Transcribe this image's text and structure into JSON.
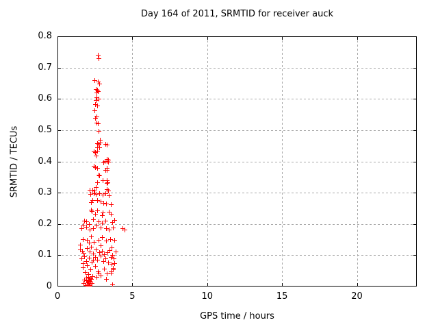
{
  "chart_data": {
    "type": "scatter",
    "title": "Day 164 of 2011, SRMTID for receiver auck",
    "xlabel": "GPS time / hours",
    "ylabel": "SRMTID / TECUs",
    "xlim": [
      0,
      24
    ],
    "ylim": [
      0,
      0.8
    ],
    "xticks": [
      {
        "v": 0,
        "label": "0"
      },
      {
        "v": 5,
        "label": "5"
      },
      {
        "v": 10,
        "label": "10"
      },
      {
        "v": 15,
        "label": "15"
      },
      {
        "v": 20,
        "label": "20"
      }
    ],
    "yticks": [
      {
        "v": 0.0,
        "label": "0"
      },
      {
        "v": 0.1,
        "label": "0.1"
      },
      {
        "v": 0.2,
        "label": "0.2"
      },
      {
        "v": 0.3,
        "label": "0.3"
      },
      {
        "v": 0.4,
        "label": "0.4"
      },
      {
        "v": 0.5,
        "label": "0.5"
      },
      {
        "v": 0.6,
        "label": "0.6"
      },
      {
        "v": 0.7,
        "label": "0.7"
      },
      {
        "v": 0.8,
        "label": "0.8"
      }
    ],
    "grid": true,
    "legend": "none",
    "marker": "plus",
    "marker_color": "#ff0000",
    "grid_color": "#a8a8a8",
    "border_color": "#000000",
    "series": [
      {
        "name": "SRMTID",
        "points": [
          [
            2.7,
            0.74
          ],
          [
            2.72,
            0.73
          ],
          [
            2.48,
            0.66
          ],
          [
            2.68,
            0.656
          ],
          [
            2.79,
            0.648
          ],
          [
            2.56,
            0.632
          ],
          [
            2.63,
            0.63
          ],
          [
            2.68,
            0.625
          ],
          [
            2.61,
            0.62
          ],
          [
            2.6,
            0.605
          ],
          [
            2.74,
            0.6
          ],
          [
            2.56,
            0.596
          ],
          [
            2.53,
            0.583
          ],
          [
            2.66,
            0.579
          ],
          [
            2.49,
            0.563
          ],
          [
            2.6,
            0.543
          ],
          [
            2.5,
            0.539
          ],
          [
            2.59,
            0.524
          ],
          [
            2.71,
            0.522
          ],
          [
            2.74,
            0.497
          ],
          [
            2.82,
            0.469
          ],
          [
            2.63,
            0.458
          ],
          [
            2.75,
            0.456
          ],
          [
            2.82,
            0.46
          ],
          [
            3.21,
            0.456
          ],
          [
            3.29,
            0.453
          ],
          [
            2.66,
            0.446
          ],
          [
            2.79,
            0.445
          ],
          [
            2.41,
            0.432
          ],
          [
            2.52,
            0.429
          ],
          [
            2.63,
            0.433
          ],
          [
            2.56,
            0.418
          ],
          [
            3.27,
            0.408
          ],
          [
            3.37,
            0.406
          ],
          [
            3.14,
            0.401
          ],
          [
            3.27,
            0.401
          ],
          [
            3.37,
            0.398
          ],
          [
            3.06,
            0.396
          ],
          [
            2.53,
            0.381
          ],
          [
            2.66,
            0.38
          ],
          [
            3.29,
            0.38
          ],
          [
            3.27,
            0.373
          ],
          [
            2.42,
            0.385
          ],
          [
            3.18,
            0.373
          ],
          [
            2.79,
            0.354
          ],
          [
            2.72,
            0.357
          ],
          [
            3.27,
            0.339
          ],
          [
            2.63,
            0.334
          ],
          [
            3.36,
            0.334
          ],
          [
            3.27,
            0.33
          ],
          [
            3.03,
            0.339
          ],
          [
            3.37,
            0.307
          ],
          [
            3.27,
            0.311
          ],
          [
            2.54,
            0.317
          ],
          [
            2.15,
            0.308
          ],
          [
            2.33,
            0.31
          ],
          [
            2.45,
            0.306
          ],
          [
            2.19,
            0.296
          ],
          [
            2.42,
            0.299
          ],
          [
            2.57,
            0.295
          ],
          [
            2.8,
            0.297
          ],
          [
            3.0,
            0.293
          ],
          [
            3.18,
            0.297
          ],
          [
            3.41,
            0.292
          ],
          [
            2.26,
            0.27
          ],
          [
            2.65,
            0.276
          ],
          [
            2.88,
            0.272
          ],
          [
            3.06,
            0.268
          ],
          [
            3.23,
            0.266
          ],
          [
            3.56,
            0.264
          ],
          [
            2.34,
            0.277
          ],
          [
            2.23,
            0.246
          ],
          [
            2.29,
            0.241
          ],
          [
            2.65,
            0.243
          ],
          [
            3.03,
            0.236
          ],
          [
            3.45,
            0.24
          ],
          [
            3.56,
            0.233
          ],
          [
            2.5,
            0.232
          ],
          [
            2.95,
            0.228
          ],
          [
            1.78,
            0.211
          ],
          [
            1.93,
            0.208
          ],
          [
            2.39,
            0.214
          ],
          [
            2.72,
            0.208
          ],
          [
            2.98,
            0.204
          ],
          [
            3.18,
            0.211
          ],
          [
            3.64,
            0.206
          ],
          [
            3.79,
            0.213
          ],
          [
            1.69,
            0.197
          ],
          [
            2.1,
            0.2
          ],
          [
            1.6,
            0.186
          ],
          [
            1.92,
            0.19
          ],
          [
            2.17,
            0.182
          ],
          [
            2.39,
            0.186
          ],
          [
            2.62,
            0.194
          ],
          [
            2.9,
            0.189
          ],
          [
            3.23,
            0.187
          ],
          [
            3.44,
            0.181
          ],
          [
            3.7,
            0.189
          ],
          [
            4.33,
            0.187
          ],
          [
            4.46,
            0.182
          ],
          [
            1.69,
            0.151
          ],
          [
            1.98,
            0.148
          ],
          [
            2.25,
            0.16
          ],
          [
            2.44,
            0.143
          ],
          [
            2.72,
            0.15
          ],
          [
            2.97,
            0.157
          ],
          [
            3.26,
            0.146
          ],
          [
            3.5,
            0.152
          ],
          [
            3.78,
            0.149
          ],
          [
            2.1,
            0.141
          ],
          [
            1.5,
            0.133
          ],
          [
            1.53,
            0.118
          ],
          [
            1.64,
            0.115
          ],
          [
            1.75,
            0.108
          ],
          [
            1.95,
            0.122
          ],
          [
            2.13,
            0.112
          ],
          [
            2.37,
            0.105
          ],
          [
            2.57,
            0.118
          ],
          [
            2.78,
            0.11
          ],
          [
            2.95,
            0.115
          ],
          [
            3.13,
            0.103
          ],
          [
            3.33,
            0.109
          ],
          [
            3.47,
            0.117
          ],
          [
            3.87,
            0.112
          ],
          [
            2.25,
            0.128
          ],
          [
            2.9,
            0.131
          ],
          [
            3.6,
            0.126
          ],
          [
            1.62,
            0.09
          ],
          [
            1.77,
            0.097
          ],
          [
            1.93,
            0.082
          ],
          [
            2.08,
            0.092
          ],
          [
            2.28,
            0.078
          ],
          [
            2.5,
            0.094
          ],
          [
            2.67,
            0.086
          ],
          [
            2.88,
            0.098
          ],
          [
            3.05,
            0.081
          ],
          [
            3.22,
            0.09
          ],
          [
            3.4,
            0.077
          ],
          [
            3.58,
            0.095
          ],
          [
            1.67,
            0.075
          ],
          [
            2.4,
            0.085
          ],
          [
            3.74,
            0.09
          ],
          [
            3.66,
            0.1
          ],
          [
            1.7,
            0.062
          ],
          [
            1.83,
            0.046
          ],
          [
            1.95,
            0.068
          ],
          [
            2.05,
            0.04
          ],
          [
            2.18,
            0.055
          ],
          [
            2.35,
            0.032
          ],
          [
            2.52,
            0.065
          ],
          [
            2.7,
            0.048
          ],
          [
            2.9,
            0.035
          ],
          [
            3.1,
            0.058
          ],
          [
            3.3,
            0.042
          ],
          [
            3.72,
            0.055
          ],
          [
            2.6,
            0.03
          ],
          [
            3.55,
            0.048
          ],
          [
            3.62,
            0.072
          ],
          [
            3.68,
            0.06
          ],
          [
            3.8,
            0.075
          ],
          [
            3.26,
            0.025
          ],
          [
            2.72,
            0.043
          ],
          [
            3.56,
            0.044
          ],
          [
            1.74,
            0.012
          ],
          [
            1.88,
            0.004
          ],
          [
            1.92,
            0.02
          ],
          [
            1.96,
            0.008
          ],
          [
            2.0,
            0.015
          ],
          [
            2.04,
            0.002
          ],
          [
            2.08,
            0.022
          ],
          [
            2.12,
            0.01
          ],
          [
            2.16,
            0.005
          ],
          [
            2.2,
            0.016
          ],
          [
            2.24,
            0.001
          ],
          [
            2.28,
            0.012
          ],
          [
            1.9,
            0.028
          ],
          [
            2.05,
            0.03
          ],
          [
            2.12,
            0.018
          ],
          [
            1.8,
            0.022
          ],
          [
            1.98,
            0.0
          ],
          [
            2.06,
            0.008
          ],
          [
            2.14,
            0.026
          ],
          [
            2.22,
            0.024
          ],
          [
            3.64,
            0.006
          ]
        ]
      }
    ]
  }
}
